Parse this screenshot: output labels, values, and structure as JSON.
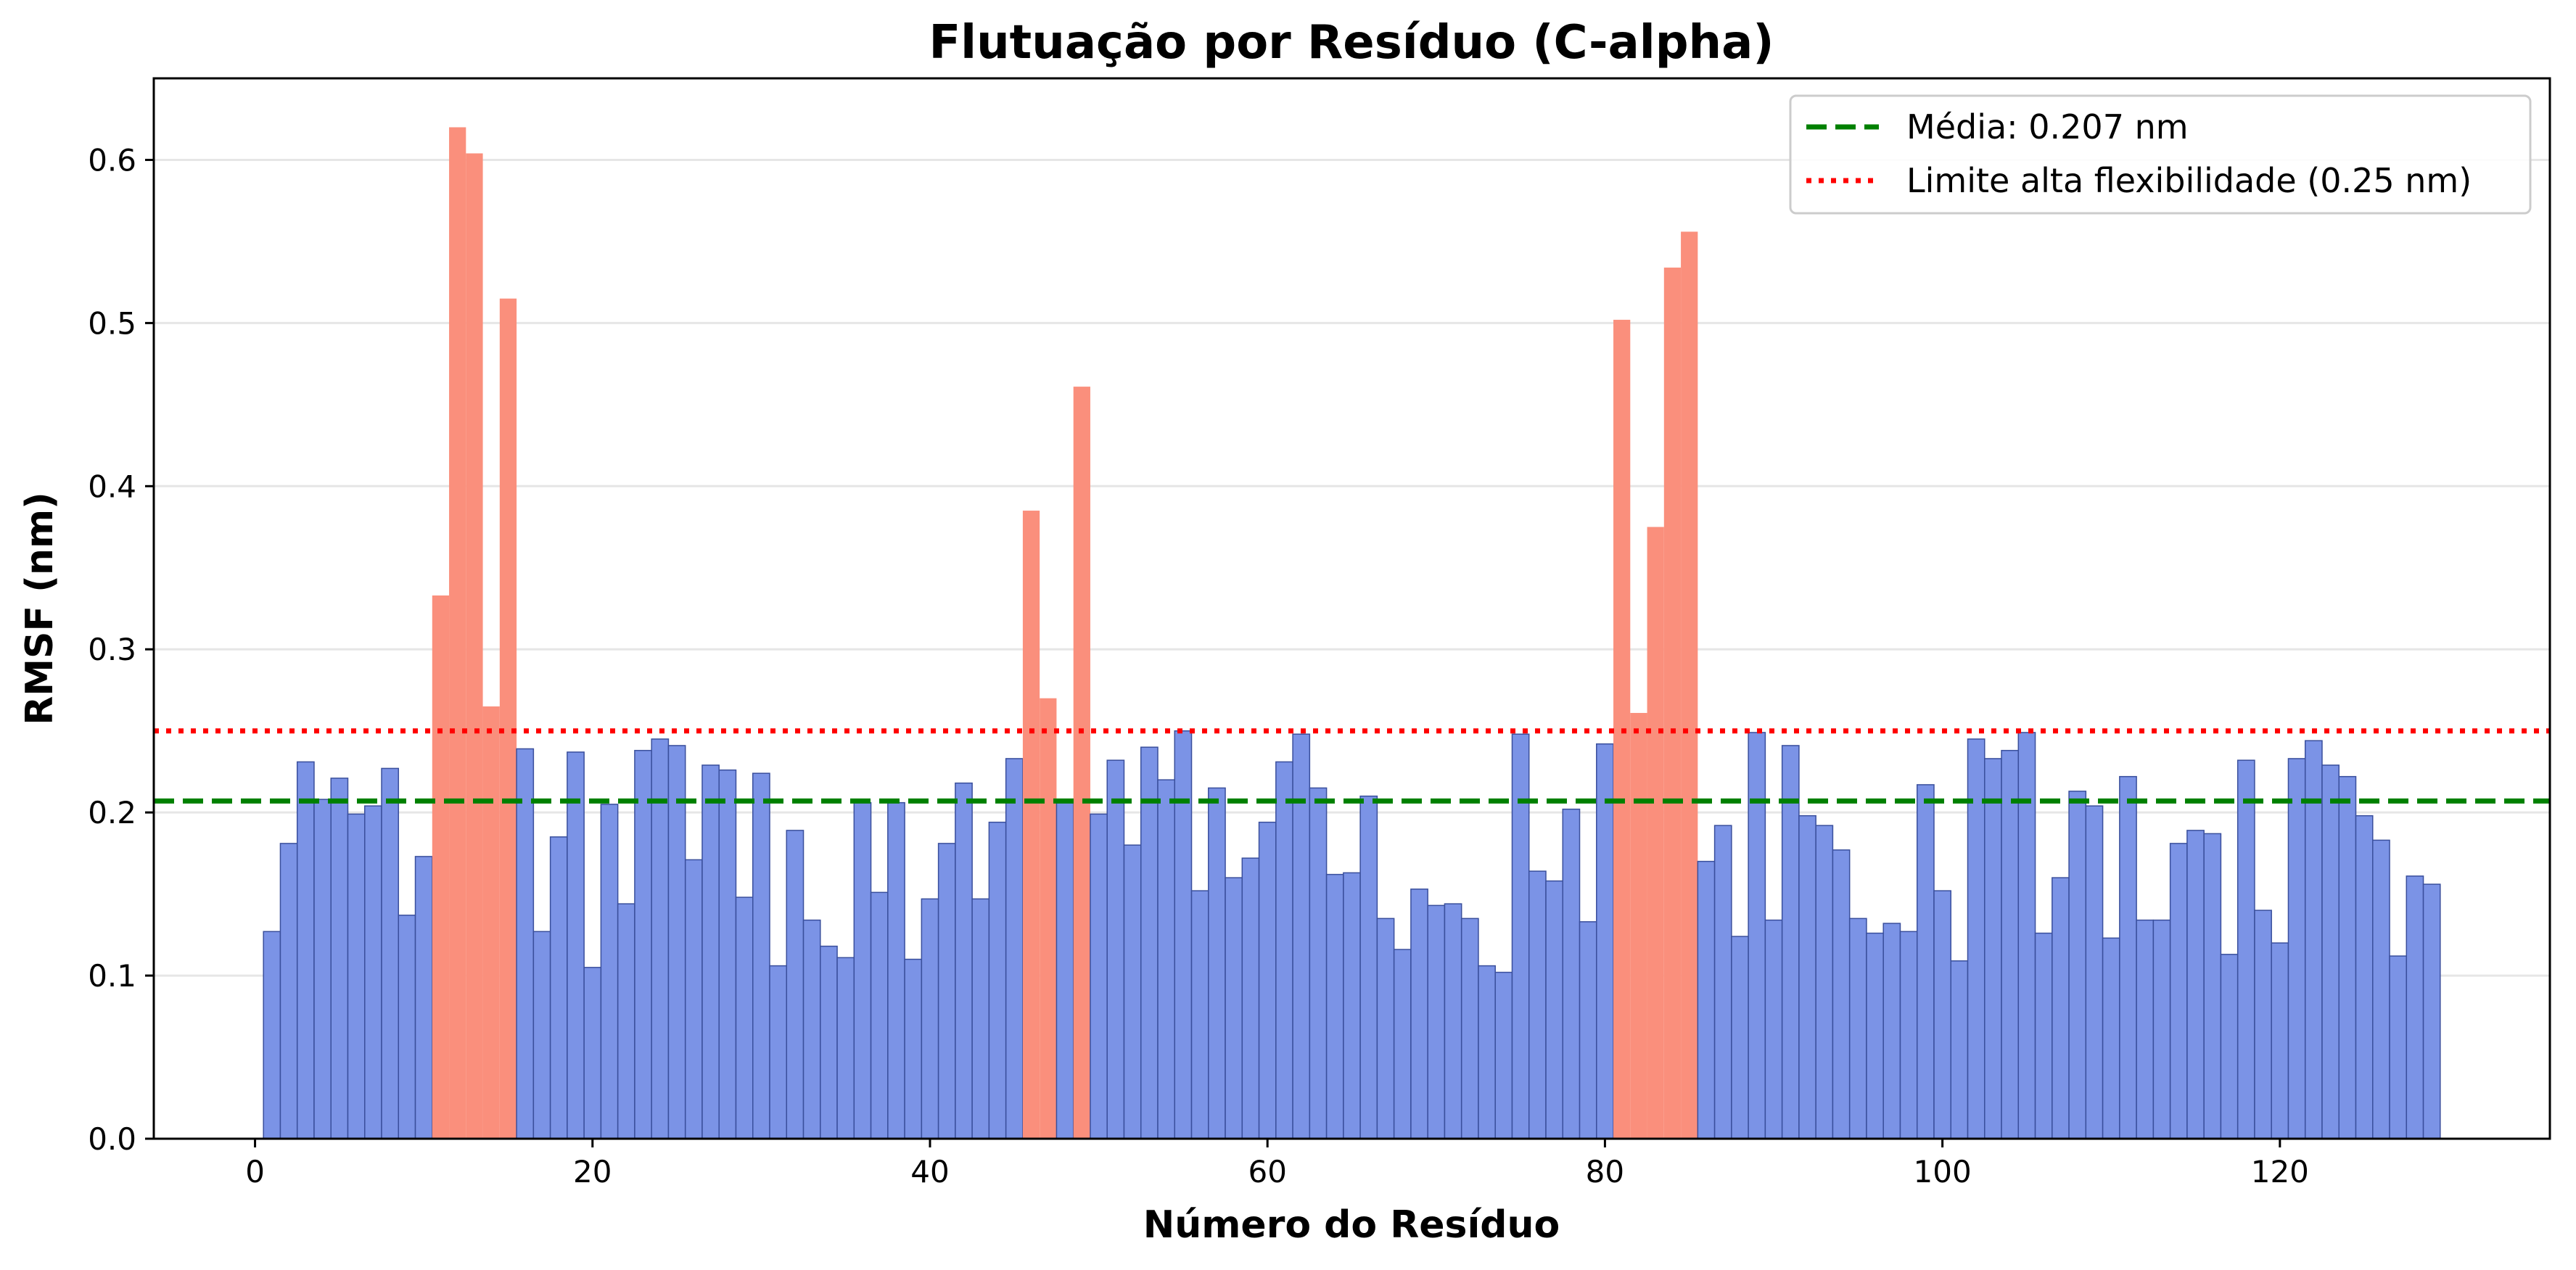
{
  "chart_data": {
    "type": "bar",
    "title": "Flutuação por Resíduo (C-alpha)",
    "xlabel": "Número do Resíduo",
    "ylabel": "RMSF (nm)",
    "xlim": [
      -6,
      136
    ],
    "ylim": [
      0,
      0.65
    ],
    "xticks": [
      0,
      20,
      40,
      60,
      80,
      100,
      120
    ],
    "yticks": [
      0.0,
      0.1,
      0.2,
      0.3,
      0.4,
      0.5,
      0.6
    ],
    "xtick_labels": [
      "0",
      "20",
      "40",
      "60",
      "80",
      "100",
      "120"
    ],
    "ytick_labels": [
      "0.0",
      "0.1",
      "0.2",
      "0.3",
      "0.4",
      "0.5",
      "0.6"
    ],
    "grid": "y",
    "x": [
      1,
      2,
      3,
      4,
      5,
      6,
      7,
      8,
      9,
      10,
      11,
      12,
      13,
      14,
      15,
      16,
      17,
      18,
      19,
      20,
      21,
      22,
      23,
      24,
      25,
      26,
      27,
      28,
      29,
      30,
      31,
      32,
      33,
      34,
      35,
      36,
      37,
      38,
      39,
      40,
      41,
      42,
      43,
      44,
      45,
      46,
      47,
      48,
      49,
      50,
      51,
      52,
      53,
      54,
      55,
      56,
      57,
      58,
      59,
      60,
      61,
      62,
      63,
      64,
      65,
      66,
      67,
      68,
      69,
      70,
      71,
      72,
      73,
      74,
      75,
      76,
      77,
      78,
      79,
      80,
      81,
      82,
      83,
      84,
      85,
      86,
      87,
      88,
      89,
      90,
      91,
      92,
      93,
      94,
      95,
      96,
      97,
      98,
      99,
      100,
      101,
      102,
      103,
      104,
      105,
      106,
      107,
      108,
      109,
      110,
      111,
      112,
      113,
      114,
      115,
      116,
      117,
      118,
      119,
      120,
      121,
      122,
      123,
      124,
      125,
      126,
      127,
      128,
      129
    ],
    "values": [
      0.127,
      0.181,
      0.231,
      0.208,
      0.221,
      0.199,
      0.204,
      0.227,
      0.137,
      0.173,
      0.333,
      0.62,
      0.604,
      0.265,
      0.515,
      0.239,
      0.127,
      0.185,
      0.237,
      0.105,
      0.205,
      0.144,
      0.238,
      0.245,
      0.241,
      0.171,
      0.229,
      0.226,
      0.148,
      0.224,
      0.106,
      0.189,
      0.134,
      0.118,
      0.111,
      0.206,
      0.151,
      0.206,
      0.11,
      0.147,
      0.181,
      0.218,
      0.147,
      0.194,
      0.233,
      0.385,
      0.27,
      0.207,
      0.461,
      0.199,
      0.232,
      0.18,
      0.24,
      0.22,
      0.25,
      0.152,
      0.215,
      0.16,
      0.172,
      0.194,
      0.231,
      0.248,
      0.215,
      0.162,
      0.163,
      0.21,
      0.135,
      0.116,
      0.153,
      0.143,
      0.144,
      0.135,
      0.106,
      0.102,
      0.248,
      0.164,
      0.158,
      0.202,
      0.133,
      0.242,
      0.502,
      0.261,
      0.375,
      0.534,
      0.556,
      0.17,
      0.192,
      0.124,
      0.249,
      0.134,
      0.241,
      0.198,
      0.192,
      0.177,
      0.135,
      0.126,
      0.132,
      0.127,
      0.217,
      0.152,
      0.109,
      0.245,
      0.233,
      0.238,
      0.249,
      0.126,
      0.16,
      0.213,
      0.204,
      0.123,
      0.222,
      0.134,
      0.134,
      0.181,
      0.189,
      0.187,
      0.113,
      0.232,
      0.14,
      0.12,
      0.233,
      0.244,
      0.229,
      0.222,
      0.198,
      0.183,
      0.112,
      0.161,
      0.156
    ],
    "highlighted": [
      11,
      12,
      13,
      14,
      15,
      46,
      47,
      49,
      81,
      82,
      83,
      84,
      85
    ],
    "colors": {
      "normal": "#7b93e6",
      "normal_edge": "#3a4f9c",
      "highlight": "#fa8f7c"
    },
    "reference_lines": [
      {
        "label": "Média: 0.207 nm",
        "y": 0.207,
        "color": "#008000",
        "style": "dashed"
      },
      {
        "label": "Limite alta flexibilidade (0.25 nm)",
        "y": 0.25,
        "color": "#ff0000",
        "style": "dotted"
      }
    ],
    "legend_position": "top-right"
  }
}
